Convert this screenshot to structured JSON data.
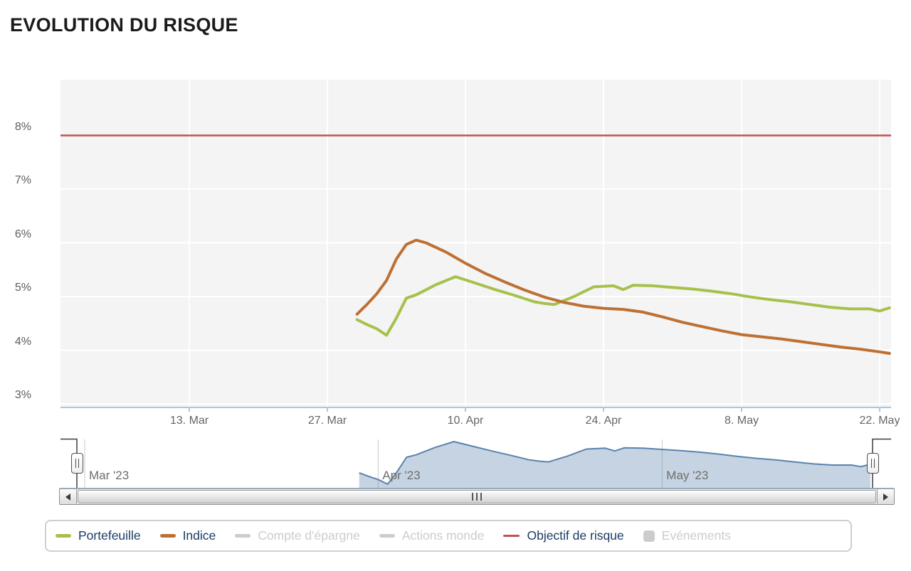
{
  "title": "EVOLUTION DU RISQUE",
  "colors": {
    "plot_background": "#f4f4f4",
    "grid": "#ffffff",
    "axis_line": "#abc7e1",
    "axis_label": "#666666",
    "legend_text": "#1a3c64",
    "disabled": "#cccccc",
    "navigator_gridline": "#c9c9c9",
    "navigator_outline": "#3f3f3f"
  },
  "chart_data": {
    "type": "line",
    "title": "EVOLUTION DU RISQUE",
    "x_axis": {
      "start_date": "2023-03-01",
      "visible_range": [
        "2023-03-30",
        "2023-05-23"
      ],
      "ticks": [
        {
          "label": "13. Mar",
          "day": 12
        },
        {
          "label": "27. Mar",
          "day": 26
        },
        {
          "label": "10. Apr",
          "day": 40
        },
        {
          "label": "24. Apr",
          "day": 54
        },
        {
          "label": "8. May",
          "day": 68
        },
        {
          "label": "22. May",
          "day": 82
        }
      ],
      "navigator_months": [
        {
          "label": "Mar '23",
          "day": 0
        },
        {
          "label": "Apr '23",
          "day": 31
        },
        {
          "label": "May '23",
          "day": 61
        }
      ]
    },
    "y_axis": {
      "unit": "%",
      "min": 2.9,
      "max": 9.05,
      "ticks": [
        {
          "label": "8%",
          "value": 8
        },
        {
          "label": "7%",
          "value": 7
        },
        {
          "label": "6%",
          "value": 6
        },
        {
          "label": "5%",
          "value": 5
        },
        {
          "label": "4%",
          "value": 4
        },
        {
          "label": "3%",
          "value": 3
        }
      ]
    },
    "target_line": {
      "name": "Objectif de risque",
      "value": 8,
      "color": "#c4504e"
    },
    "series": [
      {
        "name": "Portefeuille",
        "color": "#a6c14b",
        "visible": true,
        "points": [
          [
            29,
            4.57
          ],
          [
            30,
            4.48
          ],
          [
            31,
            4.4
          ],
          [
            32,
            4.28
          ],
          [
            33,
            4.6
          ],
          [
            34,
            4.97
          ],
          [
            35,
            5.03
          ],
          [
            37,
            5.22
          ],
          [
            39,
            5.37
          ],
          [
            41,
            5.25
          ],
          [
            43,
            5.13
          ],
          [
            45,
            5.02
          ],
          [
            47,
            4.9
          ],
          [
            48,
            4.87
          ],
          [
            49,
            4.85
          ],
          [
            51,
            5.0
          ],
          [
            53,
            5.18
          ],
          [
            55,
            5.2
          ],
          [
            56,
            5.13
          ],
          [
            57,
            5.21
          ],
          [
            59,
            5.2
          ],
          [
            61,
            5.17
          ],
          [
            63,
            5.14
          ],
          [
            65,
            5.1
          ],
          [
            67,
            5.05
          ],
          [
            69,
            4.99
          ],
          [
            71,
            4.94
          ],
          [
            73,
            4.9
          ],
          [
            75,
            4.85
          ],
          [
            77,
            4.8
          ],
          [
            79,
            4.77
          ],
          [
            81,
            4.77
          ],
          [
            82,
            4.73
          ],
          [
            83,
            4.79
          ]
        ]
      },
      {
        "name": "Indice",
        "color": "#bd7034",
        "visible": true,
        "points": [
          [
            29,
            4.67
          ],
          [
            30,
            4.85
          ],
          [
            31,
            5.05
          ],
          [
            32,
            5.3
          ],
          [
            33,
            5.7
          ],
          [
            34,
            5.97
          ],
          [
            35,
            6.05
          ],
          [
            36,
            6.0
          ],
          [
            38,
            5.83
          ],
          [
            40,
            5.62
          ],
          [
            42,
            5.43
          ],
          [
            44,
            5.27
          ],
          [
            46,
            5.12
          ],
          [
            48,
            4.99
          ],
          [
            50,
            4.89
          ],
          [
            52,
            4.82
          ],
          [
            54,
            4.78
          ],
          [
            56,
            4.76
          ],
          [
            58,
            4.71
          ],
          [
            60,
            4.62
          ],
          [
            62,
            4.52
          ],
          [
            64,
            4.44
          ],
          [
            66,
            4.36
          ],
          [
            68,
            4.29
          ],
          [
            70,
            4.25
          ],
          [
            72,
            4.21
          ],
          [
            74,
            4.16
          ],
          [
            76,
            4.11
          ],
          [
            78,
            4.06
          ],
          [
            80,
            4.02
          ],
          [
            82,
            3.97
          ],
          [
            83,
            3.94
          ]
        ]
      },
      {
        "name": "Compte d'épargne",
        "color": "#cccccc",
        "visible": false,
        "points": []
      },
      {
        "name": "Actions monde",
        "color": "#cccccc",
        "visible": false,
        "points": []
      }
    ],
    "navigator": {
      "shows_series": "Portefeuille",
      "line_color": "#5a82ae",
      "fill_color": "rgba(91,130,171,0.35)"
    }
  },
  "legend": {
    "items": [
      {
        "label": "Portefeuille",
        "symbol": "dash",
        "color": "#a6c14b",
        "active": true
      },
      {
        "label": "Indice",
        "symbol": "dash",
        "color": "#bd7034",
        "active": true
      },
      {
        "label": "Compte d'épargne",
        "symbol": "dash",
        "color": "#cccccc",
        "active": false
      },
      {
        "label": "Actions monde",
        "symbol": "dash",
        "color": "#cccccc",
        "active": false
      },
      {
        "label": "Objectif de risque",
        "symbol": "thin-dash",
        "color": "#c4504e",
        "active": true
      },
      {
        "label": "Evénements",
        "symbol": "box",
        "color": "#cccccc",
        "active": false
      }
    ]
  }
}
